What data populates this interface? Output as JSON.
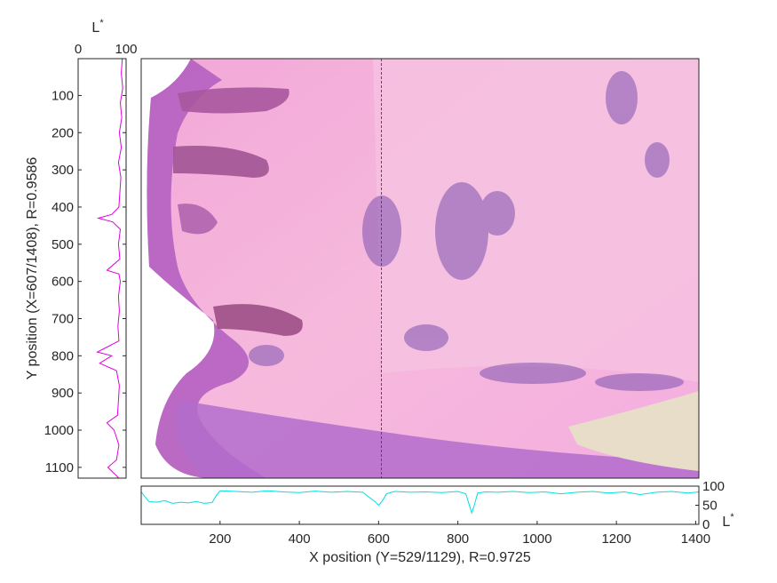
{
  "chart_data": [
    {
      "id": "image_panel",
      "type": "image",
      "description_hidden": true,
      "x_domain": [
        1,
        1408
      ],
      "y_domain": [
        1,
        1129
      ],
      "cursor_x": 607,
      "cursor_color": "#c000c0"
    },
    {
      "id": "left_profile",
      "type": "line",
      "orientation": "vertical",
      "xlabel": "L",
      "xlabel_sup": "*",
      "ylabel": "Y position (X=607/1408), R=0.9586",
      "xlim": [
        0,
        100
      ],
      "ylim": [
        1,
        1129
      ],
      "x_ticks": [
        "0",
        "100"
      ],
      "y_ticks": [
        100,
        200,
        300,
        400,
        500,
        600,
        700,
        800,
        900,
        1000,
        1100
      ],
      "y_tick_labels": [
        "100",
        "200",
        "300",
        "400",
        "500",
        "600",
        "700",
        "800",
        "900",
        "1000",
        "1100"
      ],
      "color": "#e000e0",
      "series": [
        {
          "y": [
            1,
            40,
            80,
            120,
            160,
            200,
            240,
            280,
            320,
            360,
            400,
            420,
            430,
            440,
            460,
            500,
            540,
            570,
            580,
            600,
            640,
            680,
            720,
            760,
            780,
            790,
            800,
            820,
            840,
            880,
            920,
            960,
            980,
            1000,
            1040,
            1080,
            1100,
            1129
          ],
          "x": [
            92,
            90,
            93,
            88,
            91,
            86,
            90,
            84,
            89,
            87,
            85,
            70,
            42,
            72,
            88,
            84,
            87,
            60,
            85,
            88,
            84,
            86,
            83,
            85,
            55,
            40,
            70,
            45,
            80,
            86,
            84,
            82,
            60,
            75,
            85,
            80,
            62,
            85
          ]
        }
      ]
    },
    {
      "id": "bottom_profile",
      "type": "line",
      "xlabel": "X position (Y=529/1129), R=0.9725",
      "ylabel": "L",
      "ylabel_sup": "*",
      "xlim": [
        1,
        1408
      ],
      "ylim": [
        0,
        100
      ],
      "x_ticks": [
        200,
        400,
        600,
        800,
        1000,
        1200,
        1400
      ],
      "x_tick_labels": [
        "200",
        "400",
        "600",
        "800",
        "1000",
        "1200",
        "1400"
      ],
      "y_ticks": [
        0,
        50,
        100
      ],
      "y_tick_labels": [
        "0",
        "50",
        "100"
      ],
      "color": "#00e0e0",
      "series": [
        {
          "x": [
            1,
            20,
            40,
            60,
            80,
            100,
            120,
            140,
            160,
            180,
            190,
            200,
            240,
            280,
            320,
            360,
            400,
            440,
            480,
            520,
            560,
            590,
            600,
            610,
            620,
            640,
            680,
            720,
            760,
            800,
            820,
            835,
            840,
            850,
            870,
            900,
            940,
            980,
            1020,
            1060,
            1100,
            1140,
            1180,
            1220,
            1260,
            1300,
            1340,
            1380,
            1408
          ],
          "y": [
            85,
            60,
            58,
            62,
            55,
            58,
            56,
            60,
            55,
            57,
            75,
            88,
            86,
            84,
            88,
            85,
            83,
            87,
            84,
            86,
            84,
            60,
            50,
            62,
            80,
            86,
            84,
            85,
            83,
            86,
            80,
            30,
            45,
            82,
            85,
            84,
            86,
            83,
            85,
            80,
            84,
            86,
            82,
            85,
            78,
            84,
            86,
            82,
            85
          ]
        }
      ]
    }
  ]
}
